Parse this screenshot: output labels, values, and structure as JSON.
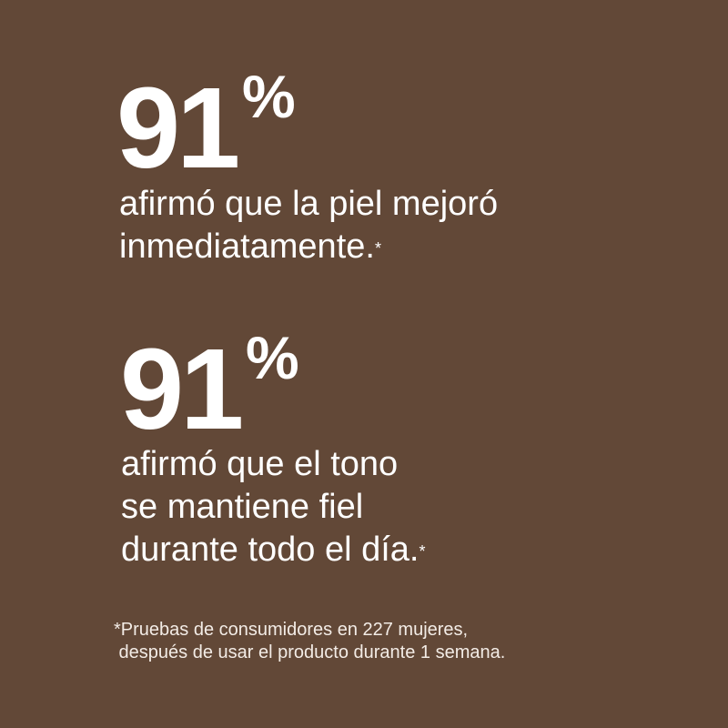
{
  "stats": [
    {
      "value": "91",
      "unit": "%",
      "lines": [
        "afirmó que la piel mejoró",
        "inmediatamente."
      ],
      "marker": "*"
    },
    {
      "value": "91",
      "unit": "%",
      "lines": [
        "afirmó que el tono",
        "se mantiene fiel",
        "durante todo el día."
      ],
      "marker": "*"
    }
  ],
  "footnote": [
    "*Pruebas de consumidores en 227 mujeres,",
    " después de usar el producto durante 1 semana."
  ],
  "colors": {
    "background": "#624837",
    "text": "#ffffff"
  }
}
